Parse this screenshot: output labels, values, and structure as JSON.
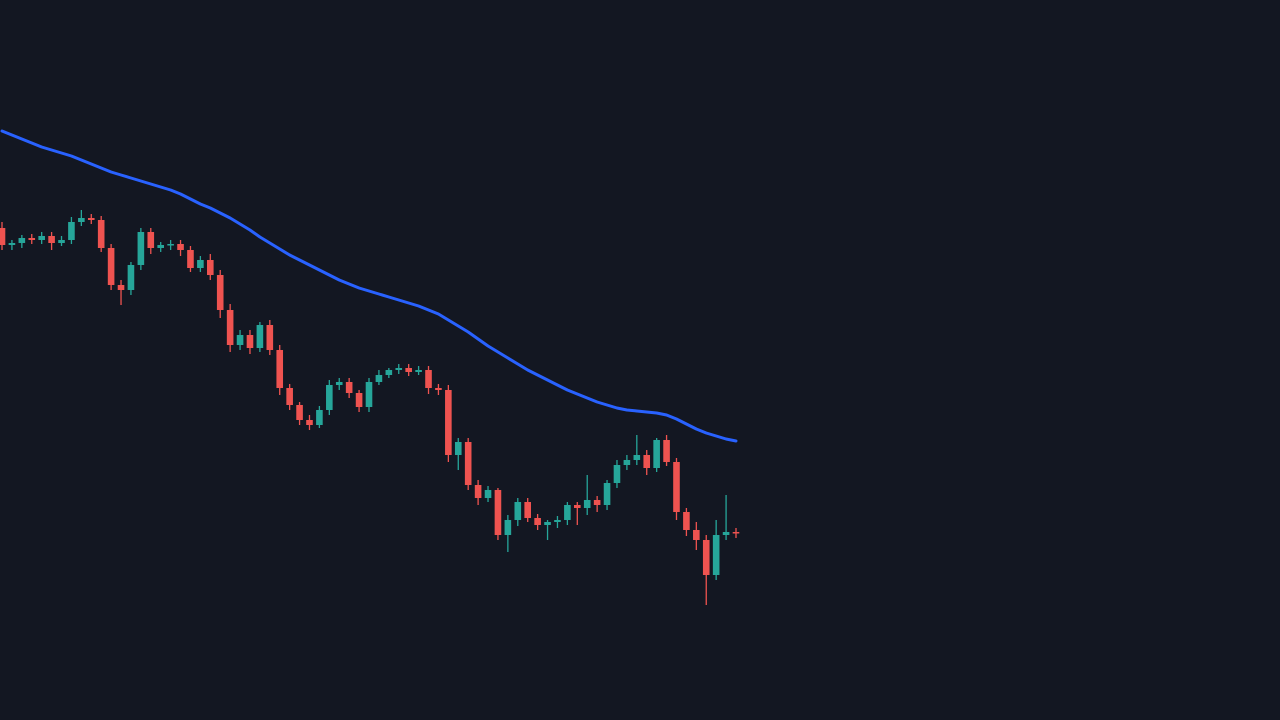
{
  "chart_data": {
    "type": "candlestick",
    "up_color": "#26a69a",
    "down_color": "#ef5350",
    "ylim": [
      0,
      720
    ],
    "open": [
      492,
      475,
      477,
      482,
      480,
      484,
      477,
      480,
      498,
      502,
      500,
      472,
      435,
      430,
      455,
      488,
      472,
      475,
      476,
      470,
      452,
      460,
      445,
      410,
      375,
      385,
      372,
      395,
      370,
      332,
      315,
      300,
      295,
      310,
      335,
      338,
      327,
      313,
      338,
      345,
      350,
      352,
      348,
      350,
      332,
      330,
      265,
      278,
      235,
      222,
      230,
      185,
      200,
      218,
      202,
      195,
      198,
      200,
      215,
      212,
      220,
      215,
      237,
      255,
      260,
      265,
      252,
      280,
      258,
      208,
      190,
      180,
      145,
      185,
      188
    ],
    "high": [
      498,
      480,
      485,
      486,
      488,
      488,
      484,
      503,
      510,
      506,
      504,
      476,
      440,
      458,
      492,
      492,
      478,
      480,
      480,
      474,
      464,
      466,
      450,
      416,
      390,
      390,
      398,
      400,
      375,
      336,
      318,
      305,
      314,
      340,
      342,
      342,
      330,
      342,
      350,
      352,
      356,
      356,
      354,
      354,
      336,
      335,
      282,
      282,
      240,
      234,
      232,
      205,
      222,
      222,
      206,
      200,
      204,
      218,
      218,
      245,
      224,
      240,
      260,
      265,
      285,
      270,
      282,
      285,
      262,
      212,
      198,
      185,
      200,
      225,
      192
    ],
    "low": [
      470,
      470,
      472,
      476,
      476,
      470,
      474,
      476,
      494,
      496,
      468,
      430,
      415,
      425,
      450,
      466,
      468,
      470,
      464,
      448,
      448,
      440,
      402,
      368,
      370,
      366,
      368,
      365,
      325,
      310,
      295,
      290,
      292,
      305,
      330,
      322,
      308,
      308,
      335,
      342,
      346,
      344,
      345,
      326,
      325,
      258,
      250,
      230,
      215,
      218,
      180,
      168,
      194,
      198,
      190,
      180,
      192,
      195,
      195,
      205,
      208,
      210,
      232,
      250,
      255,
      245,
      248,
      254,
      200,
      184,
      170,
      115,
      140,
      180,
      182
    ],
    "close": [
      475,
      477,
      482,
      480,
      484,
      477,
      480,
      498,
      502,
      500,
      472,
      435,
      430,
      455,
      488,
      472,
      475,
      476,
      470,
      452,
      460,
      445,
      410,
      375,
      385,
      372,
      395,
      370,
      332,
      315,
      300,
      295,
      310,
      335,
      338,
      327,
      313,
      338,
      345,
      350,
      352,
      348,
      350,
      332,
      330,
      265,
      278,
      235,
      222,
      230,
      185,
      200,
      218,
      202,
      195,
      198,
      200,
      215,
      212,
      220,
      215,
      237,
      255,
      260,
      265,
      252,
      280,
      258,
      208,
      190,
      180,
      145,
      185,
      188,
      187
    ],
    "ma": {
      "color": "#2962ff",
      "values": [
        589,
        585,
        581,
        577,
        573,
        570,
        567,
        564,
        560,
        556,
        552,
        548,
        545,
        542,
        539,
        536,
        533,
        530,
        526,
        521,
        516,
        512,
        507,
        502,
        496,
        490,
        483,
        477,
        471,
        465,
        460,
        455,
        450,
        445,
        440,
        436,
        432,
        429,
        426,
        423,
        420,
        417,
        414,
        410,
        406,
        400,
        394,
        388,
        381,
        374,
        368,
        362,
        356,
        350,
        345,
        340,
        335,
        330,
        326,
        322,
        318,
        315,
        312,
        310,
        309,
        308,
        307,
        305,
        301,
        296,
        291,
        287,
        284,
        281,
        279
      ]
    }
  }
}
